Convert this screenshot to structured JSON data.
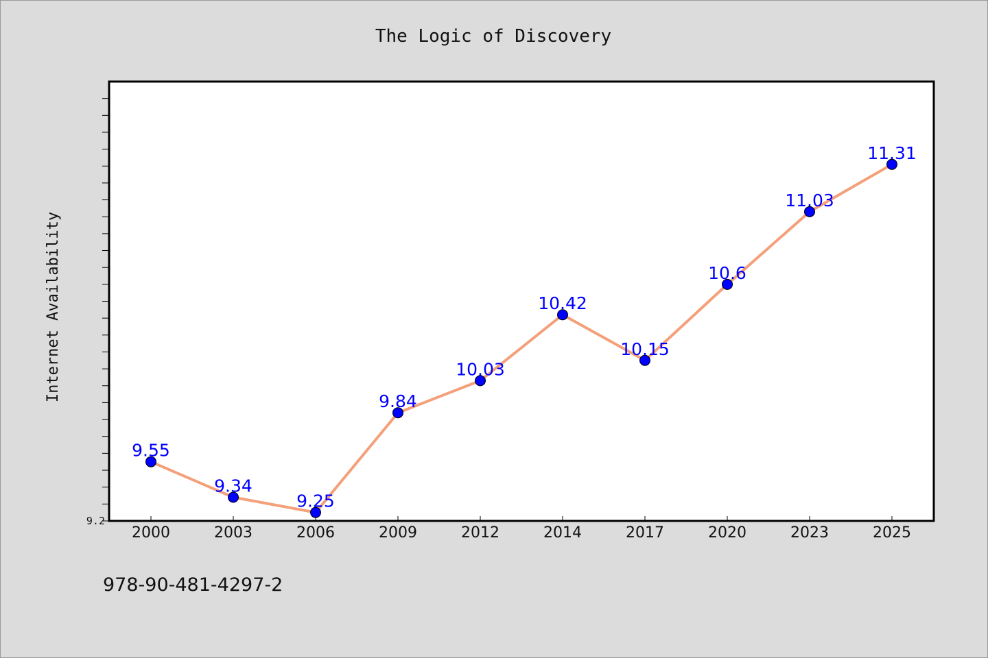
{
  "chart_data": {
    "type": "line",
    "title": "The Logic of Discovery",
    "xlabel": "",
    "ylabel": "Internet Availability",
    "categories": [
      "2000",
      "2003",
      "2006",
      "2009",
      "2012",
      "2014",
      "2017",
      "2020",
      "2023",
      "2025"
    ],
    "values": [
      9.55,
      9.34,
      9.25,
      9.84,
      10.03,
      10.42,
      10.15,
      10.6,
      11.03,
      11.31
    ],
    "data_labels": [
      "9.55",
      "9.34",
      "9.25",
      "9.84",
      "10.03",
      "10.42",
      "10.15",
      "10.6",
      "11.03",
      "11.31"
    ],
    "ylim": [
      9.2,
      11.8
    ],
    "y_tick_labels": [
      "9.2"
    ],
    "grid": false,
    "line_color": "#f4a07a",
    "marker_color": "#0000ff",
    "label_color": "#0000ff",
    "plot_background": "#ffffff"
  },
  "footer_text": "978-90-481-4297-2"
}
